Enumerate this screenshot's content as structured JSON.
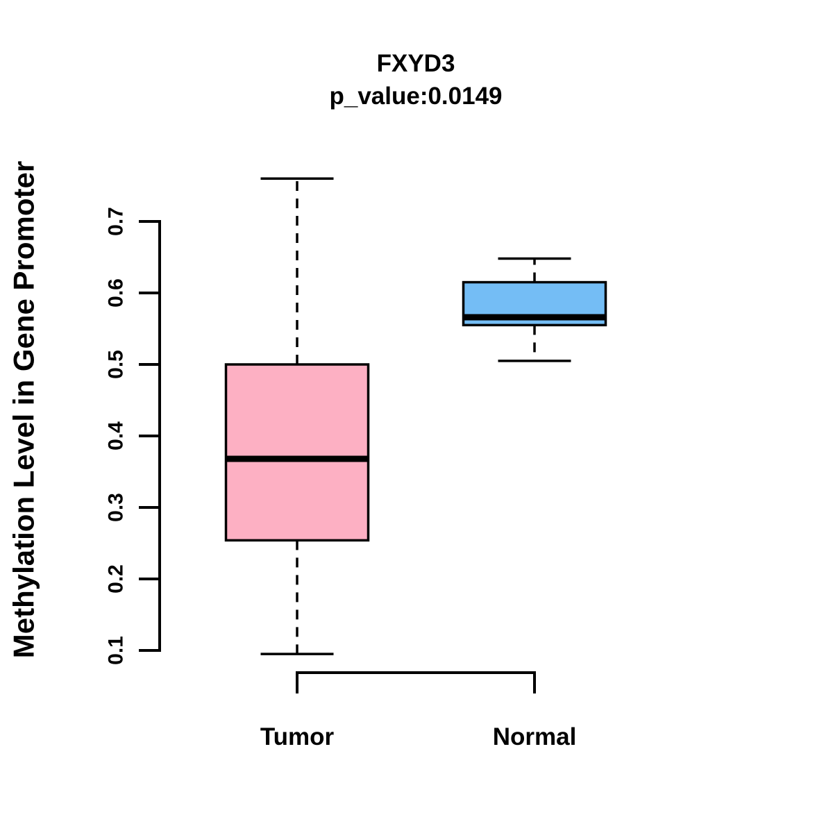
{
  "title": {
    "line1": "FXYD3",
    "line2": "p_value:0.0149"
  },
  "chart_data": {
    "type": "boxplot",
    "title": "FXYD3",
    "subtitle": "p_value:0.0149",
    "p_value": 0.0149,
    "gene": "FXYD3",
    "ylabel": "Methylation Level in Gene Promoter",
    "xlabel": "",
    "categories": [
      "Tumor",
      "Normal"
    ],
    "y_ticks": [
      0.1,
      0.2,
      0.3,
      0.4,
      0.5,
      0.6,
      0.7
    ],
    "ylim": [
      0.1,
      0.7
    ],
    "grid": false,
    "legend": "none",
    "series": [
      {
        "name": "Tumor",
        "fill_color": "#FDB0C3",
        "whisker_low": 0.095,
        "q1": 0.254,
        "median": 0.368,
        "q3": 0.5,
        "whisker_high": 0.76
      },
      {
        "name": "Normal",
        "fill_color": "#74BDF5",
        "whisker_low": 0.505,
        "q1": 0.555,
        "median": 0.566,
        "q3": 0.615,
        "whisker_high": 0.648
      }
    ],
    "colors": {
      "box_border": "#000000",
      "median": "#000000",
      "axis": "#000000",
      "background": "#FFFFFF"
    }
  }
}
